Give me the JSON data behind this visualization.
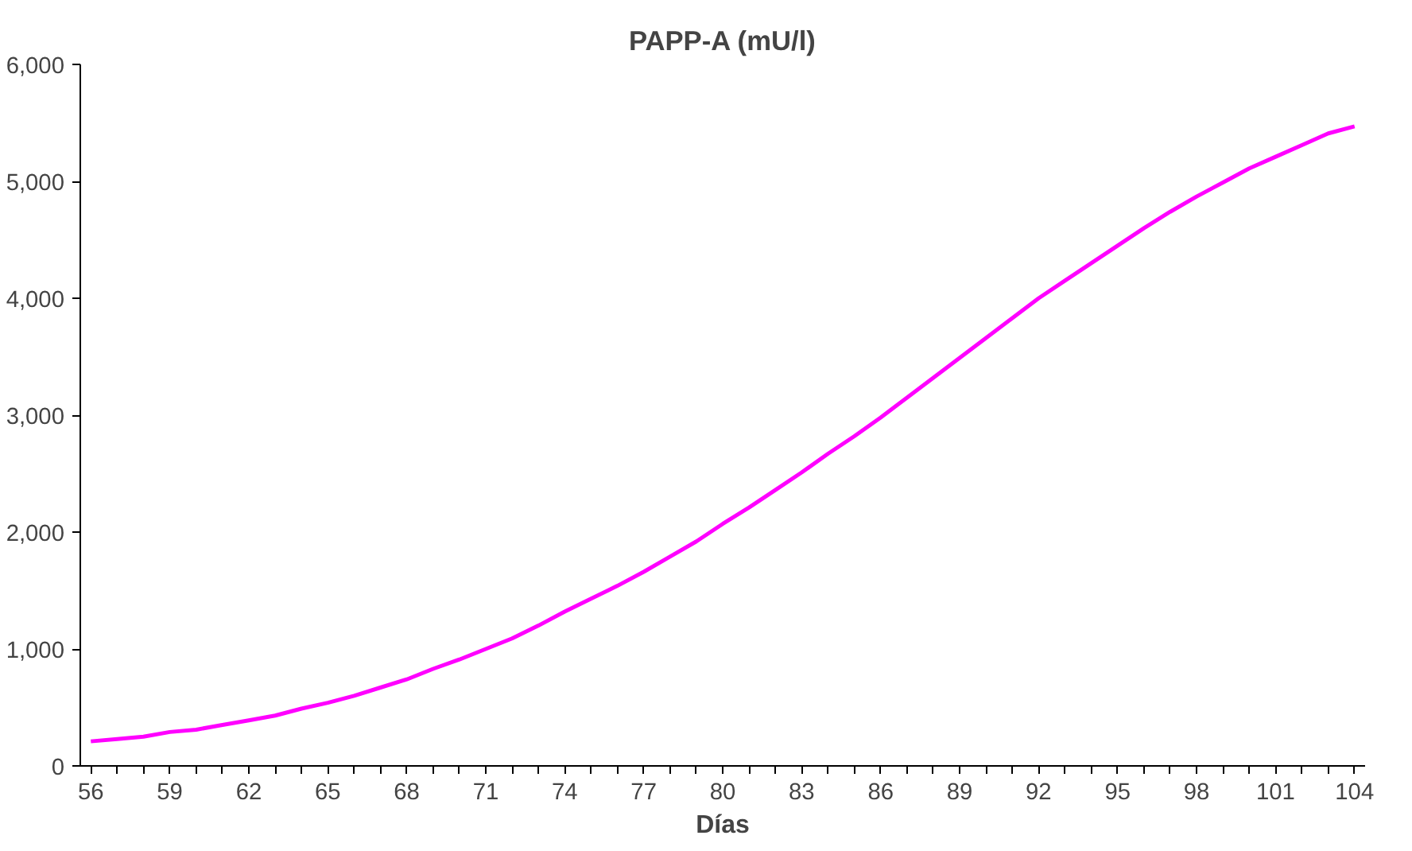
{
  "chart_data": {
    "type": "line",
    "title": "PAPP-A (mU/l)",
    "xlabel": "Días",
    "categories": [
      "56",
      null,
      null,
      "59",
      null,
      null,
      "62",
      null,
      null,
      "65",
      null,
      null,
      "68",
      null,
      null,
      "71",
      null,
      null,
      "74",
      null,
      null,
      "77",
      null,
      null,
      "80",
      null,
      null,
      "83",
      null,
      null,
      "86",
      null,
      null,
      "89",
      null,
      null,
      "92",
      null,
      null,
      "95",
      null,
      null,
      "98",
      null,
      null,
      "101",
      null,
      null,
      "104"
    ],
    "series": [
      {
        "color": "#ff00ff",
        "values": [
          210,
          230,
          250,
          290,
          310,
          350,
          390,
          430,
          490,
          540,
          600,
          670,
          740,
          830,
          910,
          1000,
          1090,
          1200,
          1320,
          1430,
          1540,
          1660,
          1790,
          1920,
          2070,
          2210,
          2360,
          2510,
          2670,
          2820,
          2980,
          3150,
          3320,
          3490,
          3660,
          3830,
          4000,
          4150,
          4300,
          4450,
          4600,
          4740,
          4870,
          4990,
          5110,
          5210,
          5310,
          5410,
          5470
        ]
      }
    ],
    "ylim": [
      0,
      6000
    ],
    "yticks": [
      0,
      {
        "value": 1000,
        "label": "1,000"
      },
      {
        "value": 2000,
        "label": "2,000"
      },
      {
        "value": 3000,
        "label": "3,000"
      },
      {
        "value": 4000,
        "label": "4,000"
      },
      {
        "value": 5000,
        "label": "5,000"
      },
      {
        "value": 6000,
        "label": "6,000"
      }
    ],
    "grid": false
  }
}
